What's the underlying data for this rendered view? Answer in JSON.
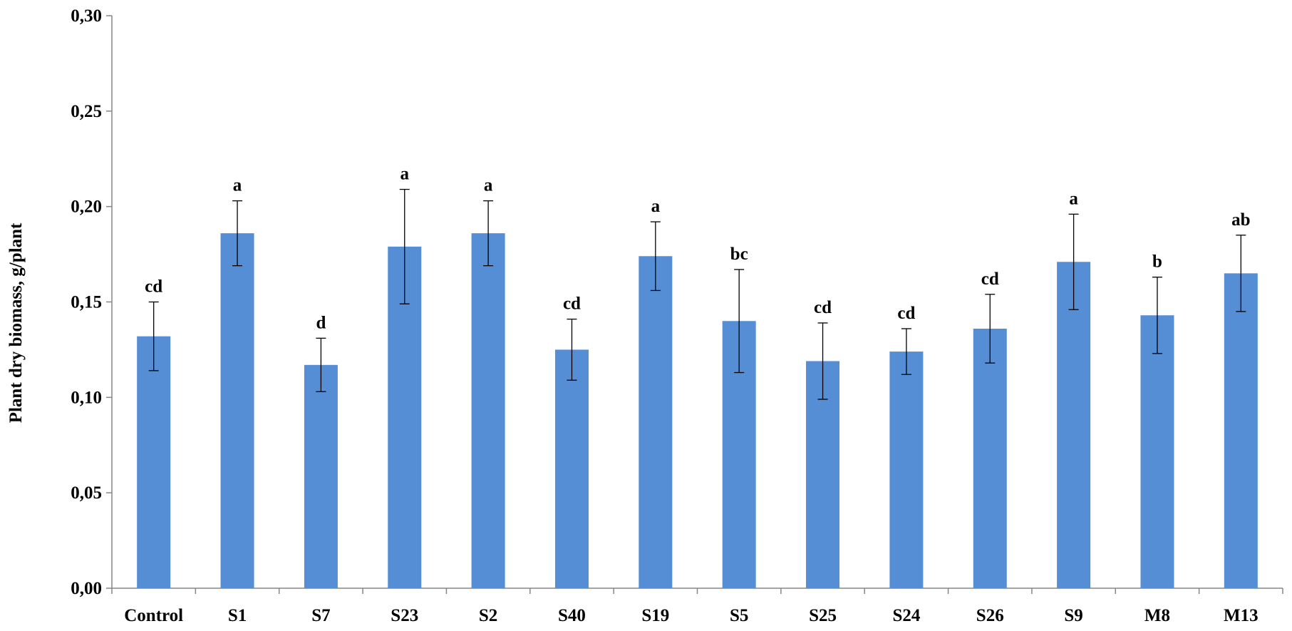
{
  "chart_data": {
    "type": "bar",
    "title": "",
    "xlabel": "",
    "ylabel": "Plant dry biomass, g/plant",
    "ylim": [
      0,
      0.3
    ],
    "yticks": [
      0.0,
      0.05,
      0.1,
      0.15,
      0.2,
      0.25,
      0.3
    ],
    "ytick_labels": [
      "0,00",
      "0,05",
      "0,10",
      "0,15",
      "0,20",
      "0,25",
      "0,30"
    ],
    "grid": false,
    "legend": "none",
    "bar_color": "#558ED5",
    "categories": [
      "Control",
      "S1",
      "S7",
      "S23",
      "S2",
      "S40",
      "S19",
      "S5",
      "S25",
      "S24",
      "S26",
      "S9",
      "M8",
      "M13"
    ],
    "values": [
      0.132,
      0.186,
      0.117,
      0.179,
      0.186,
      0.125,
      0.174,
      0.14,
      0.119,
      0.124,
      0.136,
      0.171,
      0.143,
      0.165
    ],
    "errors": [
      0.018,
      0.017,
      0.014,
      0.03,
      0.017,
      0.016,
      0.018,
      0.027,
      0.02,
      0.012,
      0.018,
      0.025,
      0.02,
      0.02
    ],
    "significance_letters": [
      "cd",
      "a",
      "d",
      "a",
      "a",
      "cd",
      "a",
      "bc",
      "cd",
      "cd",
      "cd",
      "a",
      "b",
      "ab"
    ]
  }
}
